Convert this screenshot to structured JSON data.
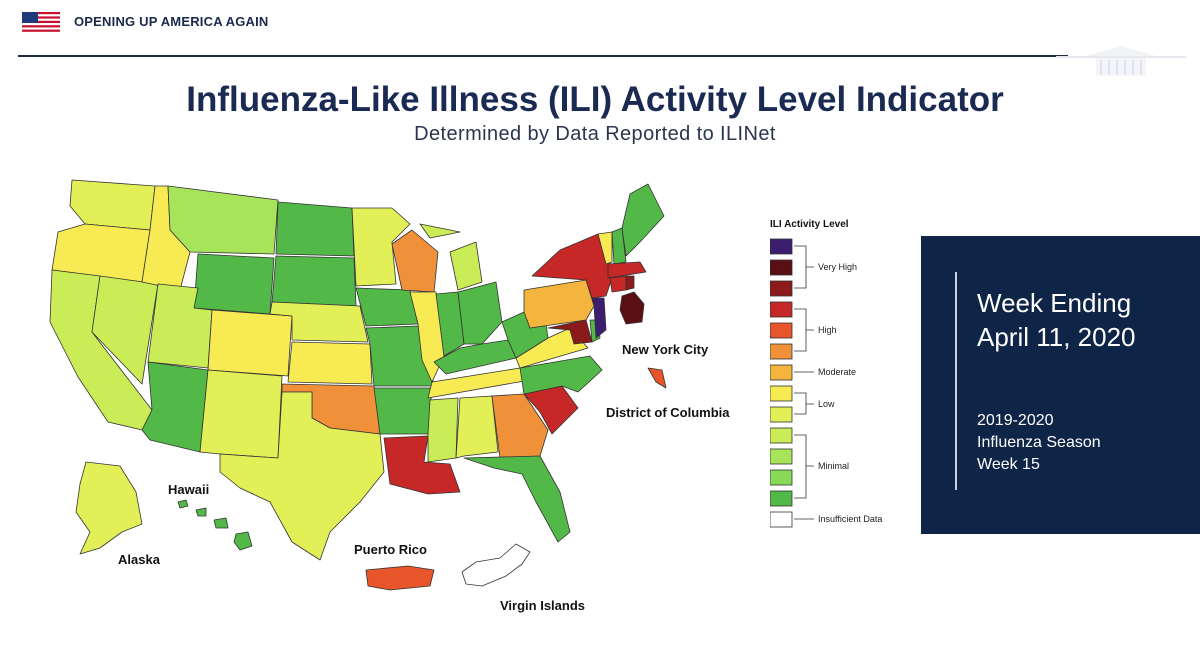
{
  "header": {
    "title": "OPENING UP AMERICA AGAIN",
    "flag_icon": "us-flag-icon",
    "logo_icon": "white-house-icon"
  },
  "title": "Influenza-Like Illness (ILI) Activity Level Indicator",
  "subtitle": "Determined by Data Reported to ILINet",
  "map": {
    "labels": {
      "new_york_city": "New York City",
      "district_of_columbia": "District of Columbia",
      "hawaii": "Hawaii",
      "alaska": "Alaska",
      "puerto_rico": "Puerto Rico",
      "virgin_islands": "Virgin Islands"
    },
    "level_colors": {
      "very_high_3": "#3b1f6e",
      "very_high_2": "#5a0f12",
      "very_high_1": "#8b1a1a",
      "high_3": "#c62828",
      "high_2": "#e8552a",
      "high_1": "#f0913a",
      "moderate": "#f4b43e",
      "low_2": "#f7ea52",
      "low_1": "#e3ef56",
      "minimal_3": "#c9ec57",
      "minimal_2": "#a8e45a",
      "minimal_1": "#86da56",
      "minimal_0": "#52b848",
      "insufficient": "#ffffff"
    }
  },
  "legend": {
    "title": "ILI Activity Level",
    "groups": {
      "very_high": "Very High",
      "high": "High",
      "moderate": "Moderate",
      "low": "Low",
      "minimal": "Minimal",
      "insufficient": "Insufficient Data"
    }
  },
  "info": {
    "week_ending_line1": "Week Ending",
    "week_ending_line2": "April 11, 2020",
    "season_line1": "2019-2020",
    "season_line2": "Influenza Season",
    "season_line3": "Week 15"
  }
}
